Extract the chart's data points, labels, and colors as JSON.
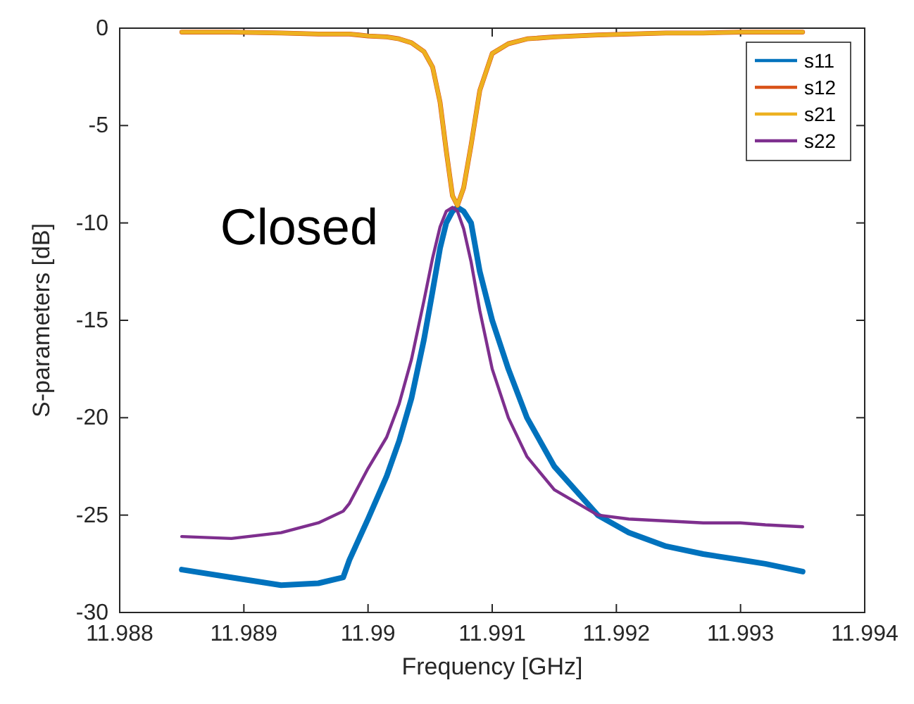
{
  "chart_data": {
    "type": "line",
    "xlabel": "Frequency [GHz]",
    "ylabel": "S-parameters [dB]",
    "xlim": [
      11.988,
      11.994
    ],
    "xticks": [
      11.988,
      11.989,
      11.99,
      11.991,
      11.992,
      11.993,
      11.994
    ],
    "ylim": [
      -30,
      0
    ],
    "yticks": [
      -30,
      -25,
      -20,
      -15,
      -10,
      -5,
      0
    ],
    "grid": false,
    "legend": "top right",
    "annotations": [
      "Closed"
    ],
    "x": [
      11.9885,
      11.9889,
      11.9893,
      11.9896,
      11.9898,
      11.98985,
      11.99,
      11.99015,
      11.99025,
      11.99035,
      11.99045,
      11.99052,
      11.99058,
      11.99063,
      11.99068,
      11.99072,
      11.99077,
      11.99083,
      11.9909,
      11.991,
      11.99113,
      11.99128,
      11.9915,
      11.99185,
      11.9921,
      11.9924,
      11.9927,
      11.993,
      11.9932,
      11.9935
    ],
    "series": [
      {
        "name": "s11",
        "color": "#0072bd",
        "values": [
          -27.8,
          -28.2,
          -28.6,
          -28.5,
          -28.2,
          -27.3,
          -25.2,
          -23,
          -21.2,
          -19,
          -16,
          -13.5,
          -11.3,
          -10,
          -9.4,
          -9.2,
          -9.4,
          -10,
          -12.5,
          -15,
          -17.5,
          -20,
          -22.5,
          -25,
          -25.9,
          -26.6,
          -27,
          -27.3,
          -27.5,
          -27.9
        ]
      },
      {
        "name": "s12",
        "color": "#d95319",
        "values": [
          -0.2,
          -0.2,
          -0.25,
          -0.3,
          -0.3,
          -0.3,
          -0.4,
          -0.45,
          -0.55,
          -0.75,
          -1.2,
          -2,
          -3.8,
          -6.3,
          -8.6,
          -9.1,
          -8.2,
          -6,
          -3.2,
          -1.3,
          -0.8,
          -0.55,
          -0.45,
          -0.35,
          -0.3,
          -0.25,
          -0.25,
          -0.2,
          -0.2,
          -0.2
        ]
      },
      {
        "name": "s21",
        "color": "#edb120",
        "values": [
          -0.2,
          -0.2,
          -0.25,
          -0.3,
          -0.3,
          -0.3,
          -0.4,
          -0.45,
          -0.55,
          -0.75,
          -1.2,
          -2,
          -3.8,
          -6.3,
          -8.6,
          -9.1,
          -8.2,
          -6,
          -3.2,
          -1.3,
          -0.8,
          -0.55,
          -0.45,
          -0.35,
          -0.3,
          -0.25,
          -0.25,
          -0.2,
          -0.2,
          -0.2
        ]
      },
      {
        "name": "s22",
        "color": "#7e2f8e",
        "values": [
          -26.1,
          -26.2,
          -25.9,
          -25.4,
          -24.8,
          -24.4,
          -22.6,
          -21,
          -19.3,
          -17,
          -14,
          -11.8,
          -10.2,
          -9.4,
          -9.2,
          -9.4,
          -10.3,
          -12,
          -14.5,
          -17.5,
          -20,
          -22,
          -23.7,
          -25,
          -25.2,
          -25.3,
          -25.4,
          -25.4,
          -25.5,
          -25.6
        ]
      }
    ]
  }
}
